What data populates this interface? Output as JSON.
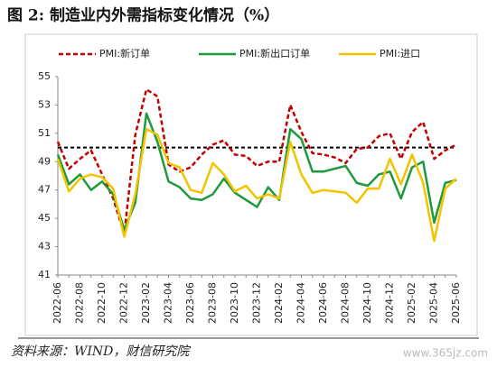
{
  "title": "图 2:  制造业内外需指标变化情况（%）",
  "source": "资料来源：WIND，财信研究院",
  "watermark": "www.365jz.com",
  "chart_data": {
    "type": "line",
    "categories": [
      "2022-06",
      null,
      "2022-08",
      null,
      "2022-10",
      null,
      "2022-12",
      null,
      "2023-02",
      null,
      "2023-04",
      null,
      "2023-06",
      null,
      "2023-08",
      null,
      "2023-10",
      null,
      "2023-12",
      null,
      "2024-02",
      null,
      "2024-04",
      null,
      "2024-06",
      null,
      "2024-08",
      null,
      "2024-10",
      null,
      "2024-12",
      null,
      "2025-02",
      null,
      "2025-04",
      null,
      "2025-06"
    ],
    "series": [
      {
        "name": "PMI:新订单",
        "color": "#c00000",
        "dashed": true,
        "values": [
          50.4,
          48.5,
          49.2,
          49.8,
          48.1,
          46.4,
          43.9,
          50.9,
          54.1,
          53.6,
          48.8,
          48.3,
          48.6,
          49.5,
          50.2,
          50.5,
          49.5,
          49.4,
          48.7,
          49.0,
          49.0,
          53.0,
          51.1,
          49.6,
          49.5,
          49.3,
          48.9,
          49.9,
          50.0,
          50.8,
          51.0,
          49.2,
          51.1,
          51.8,
          49.2,
          49.8,
          50.2
        ]
      },
      {
        "name": "PMI:新出口订单",
        "color": "#1e9a3c",
        "dashed": false,
        "values": [
          49.5,
          47.4,
          48.1,
          47.0,
          47.6,
          46.7,
          44.2,
          46.1,
          52.4,
          50.4,
          47.6,
          47.2,
          46.4,
          46.3,
          46.7,
          47.8,
          46.8,
          46.3,
          45.8,
          47.2,
          46.3,
          51.3,
          50.6,
          48.3,
          48.3,
          48.5,
          48.7,
          47.5,
          47.3,
          48.1,
          48.3,
          46.4,
          48.6,
          49.0,
          44.7,
          47.5,
          47.7
        ]
      },
      {
        "name": "PMI:进口",
        "color": "#f2c400",
        "dashed": false,
        "values": [
          49.2,
          46.9,
          47.8,
          48.1,
          47.9,
          47.1,
          43.7,
          46.7,
          51.3,
          50.9,
          48.9,
          48.6,
          47.0,
          46.8,
          48.9,
          48.1,
          46.9,
          47.3,
          46.4,
          46.7,
          46.4,
          50.4,
          48.1,
          46.8,
          47.0,
          46.9,
          46.8,
          46.1,
          47.1,
          47.1,
          49.2,
          47.4,
          49.5,
          47.5,
          43.4,
          47.1,
          47.8
        ]
      }
    ],
    "ylim": [
      41,
      55
    ],
    "yticks": [
      41,
      43,
      45,
      47,
      49,
      51,
      53,
      55
    ],
    "reference_line": 50,
    "legend": "top"
  }
}
